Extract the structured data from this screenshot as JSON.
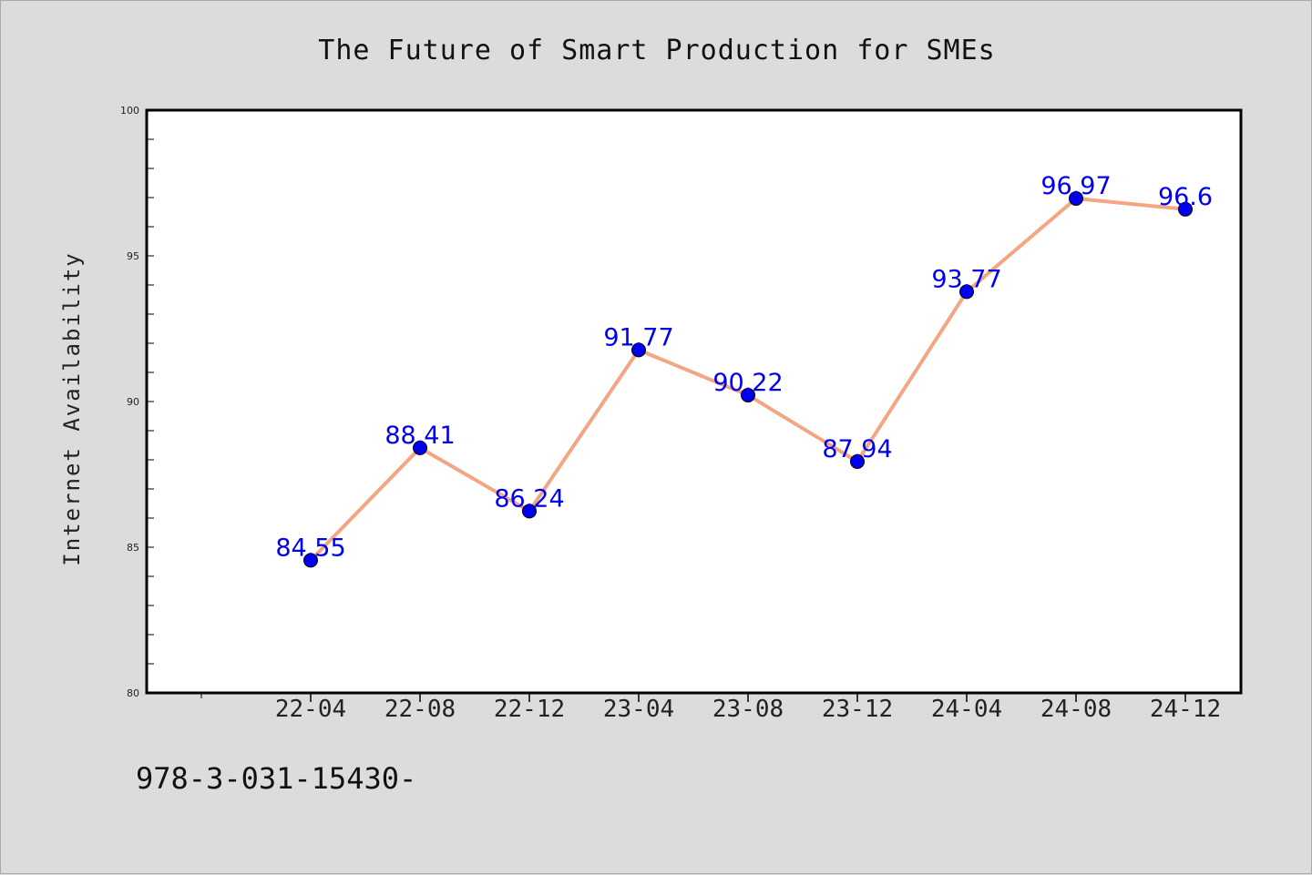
{
  "chart_data": {
    "type": "line",
    "title": "The Future of Smart Production for SMEs",
    "xlabel": "",
    "ylabel": "Internet Availability",
    "categories": [
      "22-04",
      "22-08",
      "22-12",
      "23-04",
      "23-08",
      "23-12",
      "24-04",
      "24-08",
      "24-12"
    ],
    "values": [
      84.55,
      88.41,
      86.24,
      91.77,
      90.22,
      87.94,
      93.77,
      96.97,
      96.6
    ],
    "data_labels": [
      "84.55",
      "88.41",
      "86.24",
      "91.77",
      "90.22",
      "87.94",
      "93.77",
      "96.97",
      "96.6"
    ],
    "ylim": [
      80,
      100
    ],
    "yticks": [
      80,
      85,
      90,
      95,
      100
    ],
    "grid": false,
    "line_color": "#f4a582",
    "marker_color": "#0000ee",
    "label_color": "#0000ee",
    "background": "#dcdcdc"
  },
  "footnote": "978-3-031-15430-"
}
